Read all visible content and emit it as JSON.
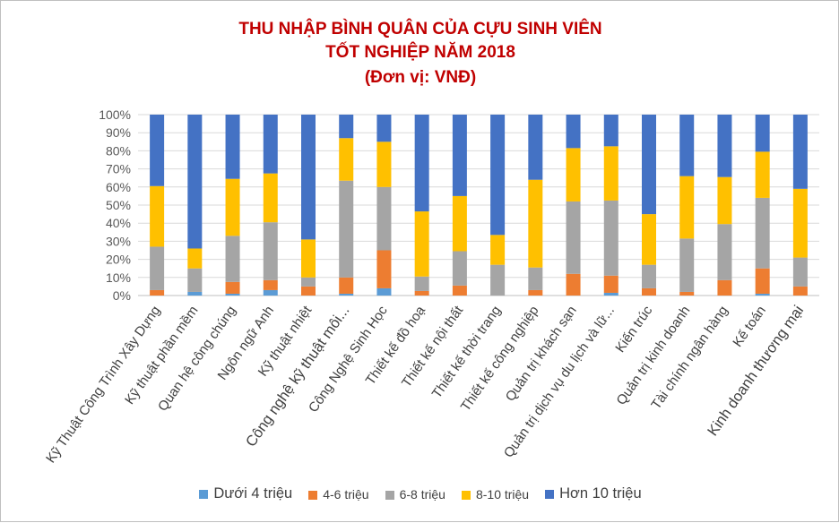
{
  "chart_data": {
    "type": "bar",
    "stacked": true,
    "normalized": true,
    "title": "THU NHẬP BÌNH QUÂN CỦA CỰU SINH VIÊN",
    "subtitle": "TỐT NGHIỆP NĂM 2018",
    "unit_note": "(Đơn vị: VNĐ)",
    "xlabel": "",
    "ylabel": "",
    "ylim": [
      0,
      100
    ],
    "y_ticks": [
      "0%",
      "10%",
      "20%",
      "30%",
      "40%",
      "50%",
      "60%",
      "70%",
      "80%",
      "90%",
      "100%"
    ],
    "grid": true,
    "legend_position": "bottom",
    "categories": [
      "Kỹ Thuật Công Trình Xây Dựng",
      "Kỹ thuật phần mềm",
      "Quan hệ công chúng",
      "Ngôn ngữ Anh",
      "Kỹ thuật nhiệt",
      "Công nghệ kỹ thuật môi...",
      "Công Nghệ Sinh Học",
      "Thiết kế đồ hoạ",
      "Thiết kế nội thất",
      "Thiết kế thời trang",
      "Thiết kế công nghiệp",
      "Quản trị khách sạn",
      "Quản trị dịch vụ du lịch và lữ...",
      "Kiến trúc",
      "Quản trị kinh doanh",
      "Tài chính ngân hàng",
      "Kế toán",
      "Kinh doanh thương mại"
    ],
    "large_categories": [
      5,
      17
    ],
    "series": [
      {
        "name": "Dưới 4 triệu",
        "color": "#5b9bd5",
        "values": [
          0,
          2,
          1,
          3,
          0,
          1,
          4,
          0,
          0,
          0,
          0,
          0,
          1.5,
          0,
          0,
          0,
          1,
          0
        ]
      },
      {
        "name": "4-6 triệu",
        "color": "#ed7d31",
        "values": [
          3,
          0,
          6.5,
          5.5,
          5,
          9,
          21,
          2.5,
          5.5,
          0,
          3,
          12,
          9.5,
          4,
          2,
          8.5,
          14,
          5
        ]
      },
      {
        "name": "6-8 triệu",
        "color": "#a5a5a5",
        "values": [
          24,
          13,
          25.5,
          32,
          5,
          53.5,
          35,
          8,
          19,
          17,
          12.5,
          40,
          41.5,
          13,
          29.5,
          31,
          39,
          16
        ]
      },
      {
        "name": "8-10 triệu",
        "color": "#ffc000",
        "values": [
          33.5,
          11,
          31.5,
          27,
          21,
          23.5,
          25,
          36,
          30.5,
          16.5,
          48.5,
          29.5,
          30,
          28,
          34.5,
          26,
          25.5,
          38
        ]
      },
      {
        "name": "Hơn 10 triệu",
        "color": "#4472c4",
        "values": [
          39.5,
          74,
          35.5,
          32.5,
          69,
          13,
          15,
          53.5,
          45,
          66.5,
          36,
          18.5,
          17.5,
          55,
          34,
          34.5,
          20.5,
          41
        ]
      }
    ]
  }
}
